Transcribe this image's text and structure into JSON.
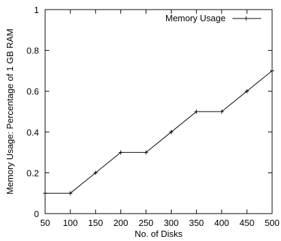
{
  "chart_data": {
    "type": "line",
    "title": "",
    "xlabel": "No. of Disks",
    "ylabel": "Memory Usage: Percentage of 1 GB RAM",
    "xlim": [
      50,
      500
    ],
    "ylim": [
      0,
      1
    ],
    "x_ticks": [
      "50",
      "100",
      "150",
      "200",
      "250",
      "300",
      "350",
      "400",
      "450",
      "500"
    ],
    "y_ticks": [
      "0",
      "0.2",
      "0.4",
      "0.6",
      "0.8",
      "1"
    ],
    "grid": false,
    "legend_position": "top-right",
    "series": [
      {
        "name": "Memory Usage",
        "color": "#000000",
        "x": [
          50,
          100,
          150,
          200,
          250,
          300,
          350,
          400,
          450,
          500
        ],
        "y": [
          0.1,
          0.1,
          0.2,
          0.3,
          0.3,
          0.4,
          0.5,
          0.5,
          0.6,
          0.7
        ]
      }
    ]
  }
}
